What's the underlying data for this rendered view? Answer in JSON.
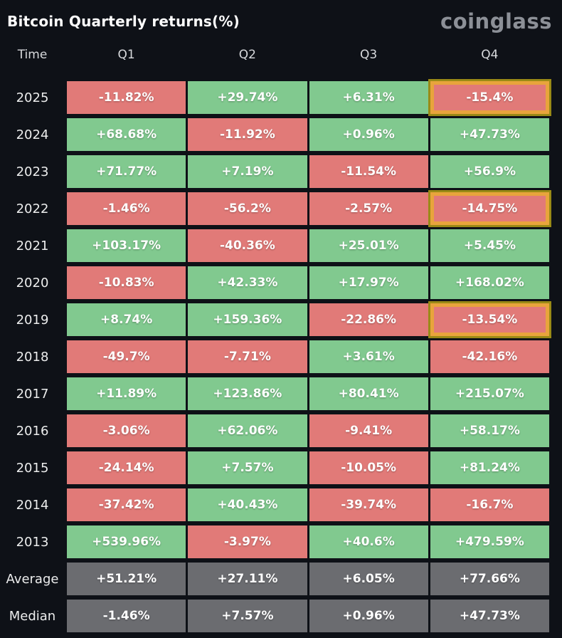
{
  "header": {
    "title": "Bitcoin Quarterly returns(%)",
    "logo": "coinglass"
  },
  "colors": {
    "background": "#0e1117",
    "positive": "#81c98f",
    "negative": "#e17a78",
    "summary": "#6b6c70",
    "highlight_border": "#e8a43c",
    "highlight_outline": "#9a8a16",
    "logo_gray": "#8c9097"
  },
  "table": {
    "columns": [
      "Time",
      "Q1",
      "Q2",
      "Q3",
      "Q4"
    ],
    "rows": [
      {
        "label": "2025",
        "cells": [
          {
            "v": "-11.82%",
            "t": "neg"
          },
          {
            "v": "+29.74%",
            "t": "pos"
          },
          {
            "v": "+6.31%",
            "t": "pos"
          },
          {
            "v": "-15.4%",
            "t": "neg",
            "hl": true
          }
        ]
      },
      {
        "label": "2024",
        "cells": [
          {
            "v": "+68.68%",
            "t": "pos"
          },
          {
            "v": "-11.92%",
            "t": "neg"
          },
          {
            "v": "+0.96%",
            "t": "pos"
          },
          {
            "v": "+47.73%",
            "t": "pos"
          }
        ]
      },
      {
        "label": "2023",
        "cells": [
          {
            "v": "+71.77%",
            "t": "pos"
          },
          {
            "v": "+7.19%",
            "t": "pos"
          },
          {
            "v": "-11.54%",
            "t": "neg"
          },
          {
            "v": "+56.9%",
            "t": "pos"
          }
        ]
      },
      {
        "label": "2022",
        "cells": [
          {
            "v": "-1.46%",
            "t": "neg"
          },
          {
            "v": "-56.2%",
            "t": "neg"
          },
          {
            "v": "-2.57%",
            "t": "neg"
          },
          {
            "v": "-14.75%",
            "t": "neg",
            "hl": true
          }
        ]
      },
      {
        "label": "2021",
        "cells": [
          {
            "v": "+103.17%",
            "t": "pos"
          },
          {
            "v": "-40.36%",
            "t": "neg"
          },
          {
            "v": "+25.01%",
            "t": "pos"
          },
          {
            "v": "+5.45%",
            "t": "pos"
          }
        ]
      },
      {
        "label": "2020",
        "cells": [
          {
            "v": "-10.83%",
            "t": "neg"
          },
          {
            "v": "+42.33%",
            "t": "pos"
          },
          {
            "v": "+17.97%",
            "t": "pos"
          },
          {
            "v": "+168.02%",
            "t": "pos"
          }
        ]
      },
      {
        "label": "2019",
        "cells": [
          {
            "v": "+8.74%",
            "t": "pos"
          },
          {
            "v": "+159.36%",
            "t": "pos"
          },
          {
            "v": "-22.86%",
            "t": "neg"
          },
          {
            "v": "-13.54%",
            "t": "neg",
            "hl": true
          }
        ]
      },
      {
        "label": "2018",
        "cells": [
          {
            "v": "-49.7%",
            "t": "neg"
          },
          {
            "v": "-7.71%",
            "t": "neg"
          },
          {
            "v": "+3.61%",
            "t": "pos"
          },
          {
            "v": "-42.16%",
            "t": "neg"
          }
        ]
      },
      {
        "label": "2017",
        "cells": [
          {
            "v": "+11.89%",
            "t": "pos"
          },
          {
            "v": "+123.86%",
            "t": "pos"
          },
          {
            "v": "+80.41%",
            "t": "pos"
          },
          {
            "v": "+215.07%",
            "t": "pos"
          }
        ]
      },
      {
        "label": "2016",
        "cells": [
          {
            "v": "-3.06%",
            "t": "neg"
          },
          {
            "v": "+62.06%",
            "t": "pos"
          },
          {
            "v": "-9.41%",
            "t": "neg"
          },
          {
            "v": "+58.17%",
            "t": "pos"
          }
        ]
      },
      {
        "label": "2015",
        "cells": [
          {
            "v": "-24.14%",
            "t": "neg"
          },
          {
            "v": "+7.57%",
            "t": "pos"
          },
          {
            "v": "-10.05%",
            "t": "neg"
          },
          {
            "v": "+81.24%",
            "t": "pos"
          }
        ]
      },
      {
        "label": "2014",
        "cells": [
          {
            "v": "-37.42%",
            "t": "neg"
          },
          {
            "v": "+40.43%",
            "t": "pos"
          },
          {
            "v": "-39.74%",
            "t": "neg"
          },
          {
            "v": "-16.7%",
            "t": "neg"
          }
        ]
      },
      {
        "label": "2013",
        "cells": [
          {
            "v": "+539.96%",
            "t": "pos"
          },
          {
            "v": "-3.97%",
            "t": "neg"
          },
          {
            "v": "+40.6%",
            "t": "pos"
          },
          {
            "v": "+479.59%",
            "t": "pos"
          }
        ]
      },
      {
        "label": "Average",
        "cells": [
          {
            "v": "+51.21%",
            "t": "avg"
          },
          {
            "v": "+27.11%",
            "t": "avg"
          },
          {
            "v": "+6.05%",
            "t": "avg"
          },
          {
            "v": "+77.66%",
            "t": "avg"
          }
        ]
      },
      {
        "label": "Median",
        "cells": [
          {
            "v": "-1.46%",
            "t": "avg"
          },
          {
            "v": "+7.57%",
            "t": "avg"
          },
          {
            "v": "+0.96%",
            "t": "avg"
          },
          {
            "v": "+47.73%",
            "t": "avg"
          }
        ]
      }
    ]
  },
  "chart_data": {
    "type": "table",
    "title": "Bitcoin Quarterly returns(%)",
    "columns": [
      "Q1",
      "Q2",
      "Q3",
      "Q4"
    ],
    "row_labels": [
      "2025",
      "2024",
      "2023",
      "2022",
      "2021",
      "2020",
      "2019",
      "2018",
      "2017",
      "2016",
      "2015",
      "2014",
      "2013",
      "Average",
      "Median"
    ],
    "values": [
      [
        -11.82,
        29.74,
        6.31,
        -15.4
      ],
      [
        68.68,
        -11.92,
        0.96,
        47.73
      ],
      [
        71.77,
        7.19,
        -11.54,
        56.9
      ],
      [
        -1.46,
        -56.2,
        -2.57,
        -14.75
      ],
      [
        103.17,
        -40.36,
        25.01,
        5.45
      ],
      [
        -10.83,
        42.33,
        17.97,
        168.02
      ],
      [
        8.74,
        159.36,
        -22.86,
        -13.54
      ],
      [
        -49.7,
        -7.71,
        3.61,
        -42.16
      ],
      [
        11.89,
        123.86,
        80.41,
        215.07
      ],
      [
        -3.06,
        62.06,
        -9.41,
        58.17
      ],
      [
        -24.14,
        7.57,
        -10.05,
        81.24
      ],
      [
        -37.42,
        40.43,
        -39.74,
        -16.7
      ],
      [
        539.96,
        -3.97,
        40.6,
        479.59
      ],
      [
        51.21,
        27.11,
        6.05,
        77.66
      ],
      [
        -1.46,
        7.57,
        0.96,
        47.73
      ]
    ],
    "highlighted_cells": [
      [
        "2025",
        "Q4"
      ],
      [
        "2022",
        "Q4"
      ],
      [
        "2019",
        "Q4"
      ]
    ],
    "color_rule": "green = positive return, red = negative return, gray = summary rows (Average/Median), orange border = highlighted Q4 cells"
  }
}
